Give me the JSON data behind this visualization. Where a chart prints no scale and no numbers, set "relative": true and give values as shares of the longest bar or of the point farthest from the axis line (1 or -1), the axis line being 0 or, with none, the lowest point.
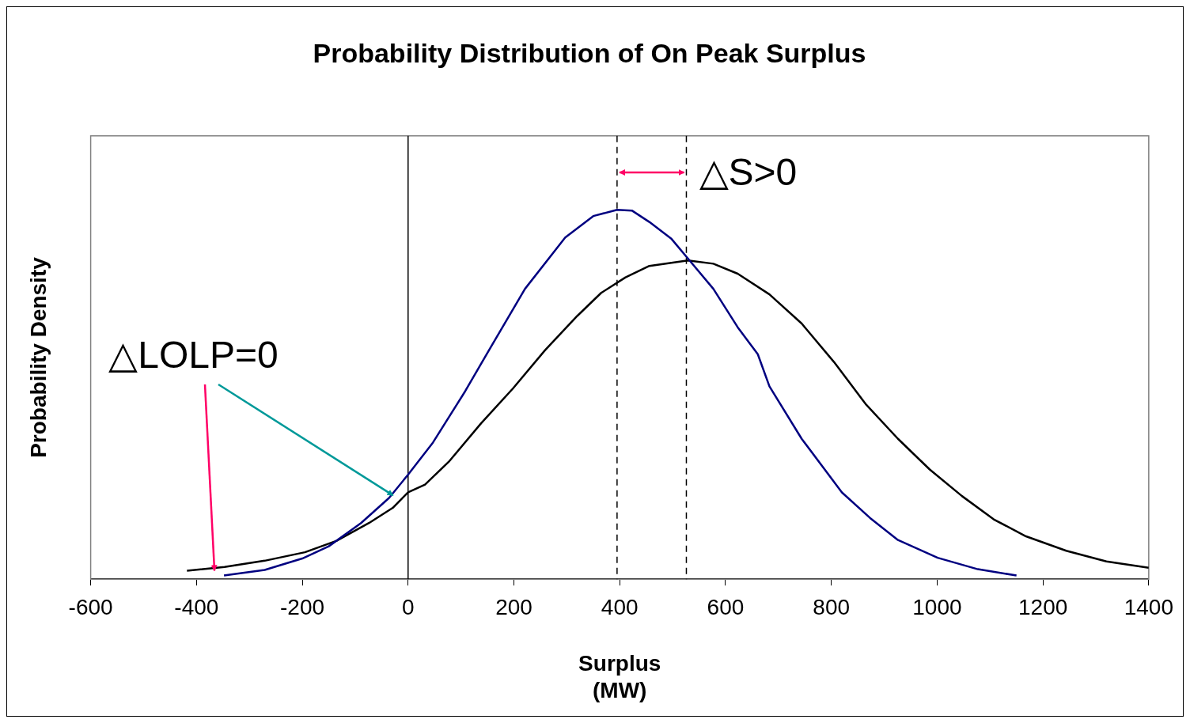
{
  "chart_data": {
    "type": "line",
    "title": "Probability Distribution of On Peak Surplus",
    "xlabel": "Surplus\n(MW)",
    "ylabel": "Probability Density",
    "relative": true,
    "xlim": [
      -600,
      1400
    ],
    "xticks": [
      -600,
      -400,
      -200,
      0,
      200,
      400,
      600,
      800,
      1000,
      1200,
      1400
    ],
    "grid": false,
    "legend": false,
    "marker": "none",
    "line_style": "solid",
    "annotations": [
      "△S>0",
      "△LOLP=0"
    ],
    "ref_lines": [
      {
        "axis": "x",
        "value": 0,
        "color": "#000000",
        "line_style": "solid"
      },
      {
        "axis": "x",
        "value": 395,
        "color": "#000000",
        "line_style": "dashed"
      },
      {
        "axis": "x",
        "value": 526,
        "color": "#000000",
        "line_style": "dashed"
      }
    ],
    "series": [
      {
        "color": "#000080",
        "x": [
          -348,
          -271,
          -200,
          -150,
          -89,
          -36,
          0,
          47,
          108,
          153,
          221,
          297,
          350,
          395,
          423,
          456,
          498,
          532,
          577,
          623,
          661,
          683,
          744,
          820,
          873,
          926,
          1001,
          1077,
          1150
        ],
        "values": [
          0.01,
          0.025,
          0.056,
          0.089,
          0.152,
          0.22,
          0.283,
          0.37,
          0.509,
          0.62,
          0.786,
          0.925,
          0.983,
          1.0,
          0.998,
          0.967,
          0.921,
          0.863,
          0.786,
          0.682,
          0.609,
          0.522,
          0.38,
          0.235,
          0.166,
          0.106,
          0.058,
          0.027,
          0.01
        ]
      },
      {
        "color": "#000000",
        "x": [
          -418,
          -347,
          -271,
          -195,
          -135,
          -74,
          -29,
          0,
          32,
          77,
          138,
          198,
          259,
          320,
          365,
          411,
          456,
          529,
          577,
          623,
          683,
          744,
          805,
          865,
          926,
          986,
          1047,
          1107,
          1168,
          1244,
          1320,
          1400
        ],
        "values": [
          0.023,
          0.033,
          0.05,
          0.073,
          0.104,
          0.152,
          0.193,
          0.235,
          0.256,
          0.318,
          0.422,
          0.516,
          0.62,
          0.713,
          0.775,
          0.817,
          0.848,
          0.863,
          0.854,
          0.827,
          0.771,
          0.692,
          0.588,
          0.474,
          0.38,
          0.297,
          0.225,
          0.162,
          0.116,
          0.077,
          0.048,
          0.031
        ]
      }
    ]
  }
}
